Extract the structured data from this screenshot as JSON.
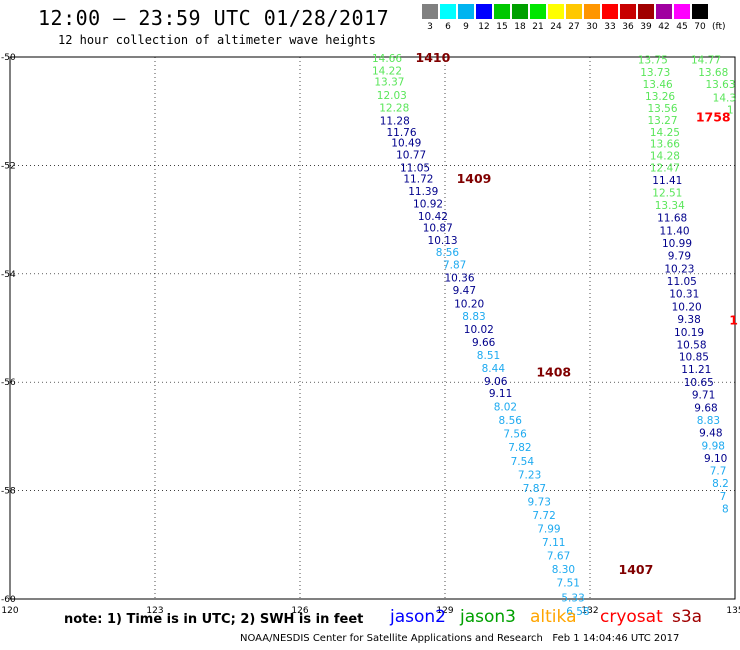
{
  "header": {
    "title": "12:00 — 23:59 UTC 01/28/2017",
    "subtitle": "12 hour collection of altimeter wave heights"
  },
  "scale": {
    "unit": "(ft)",
    "bins": [
      {
        "label": "3",
        "color": "#808080"
      },
      {
        "label": "6",
        "color": "#00ffff"
      },
      {
        "label": "9",
        "color": "#00b4f0"
      },
      {
        "label": "12",
        "color": "#0000ff"
      },
      {
        "label": "15",
        "color": "#00c800"
      },
      {
        "label": "18",
        "color": "#00a000"
      },
      {
        "label": "21",
        "color": "#00e600"
      },
      {
        "label": "24",
        "color": "#ffff00"
      },
      {
        "label": "27",
        "color": "#ffc800"
      },
      {
        "label": "30",
        "color": "#ff9600"
      },
      {
        "label": "33",
        "color": "#ff0000"
      },
      {
        "label": "36",
        "color": "#c80000"
      },
      {
        "label": "39",
        "color": "#a00000"
      },
      {
        "label": "42",
        "color": "#a000a0"
      },
      {
        "label": "45",
        "color": "#ff00ff"
      },
      {
        "label": "70",
        "color": "#000000"
      }
    ]
  },
  "axes": {
    "lon_ticks": [
      "120",
      "123",
      "126",
      "129",
      "132",
      "135"
    ],
    "lat_ticks": [
      "-50",
      "-52",
      "-54",
      "-56",
      "-58",
      "-60"
    ]
  },
  "colors": {
    "navy": "#00008b",
    "sky": "#1eaaf0",
    "lightgreen": "#5ae65a",
    "pass_label": "#800000",
    "pass_label_s3a": "#ff0000"
  },
  "tracks": [
    {
      "points": [
        {
          "lon": 127.8,
          "lat": -50.02,
          "v": "14.66",
          "c": "lightgreen"
        },
        {
          "lon": 127.8,
          "lat": -50.25,
          "v": "14.22",
          "c": "lightgreen"
        },
        {
          "lon": 127.85,
          "lat": -50.45,
          "v": "13.37",
          "c": "lightgreen"
        },
        {
          "lon": 127.9,
          "lat": -50.7,
          "v": "12.03",
          "c": "lightgreen"
        },
        {
          "lon": 127.95,
          "lat": -50.93,
          "v": "12.28",
          "c": "lightgreen"
        },
        {
          "lon": 127.96,
          "lat": -51.17,
          "v": "11.28",
          "c": "navy"
        },
        {
          "lon": 128.1,
          "lat": -51.38,
          "v": "11.76",
          "c": "navy"
        },
        {
          "lon": 128.2,
          "lat": -51.58,
          "v": "10.49",
          "c": "navy"
        },
        {
          "lon": 128.3,
          "lat": -51.8,
          "v": "10.77",
          "c": "navy"
        },
        {
          "lon": 128.38,
          "lat": -52.04,
          "v": "11.05",
          "c": "navy"
        },
        {
          "lon": 128.45,
          "lat": -52.24,
          "v": "11.72",
          "c": "navy"
        },
        {
          "lon": 128.55,
          "lat": -52.47,
          "v": "11.39",
          "c": "navy"
        },
        {
          "lon": 128.65,
          "lat": -52.7,
          "v": "10.92",
          "c": "navy"
        },
        {
          "lon": 128.75,
          "lat": -52.93,
          "v": "10.42",
          "c": "navy"
        },
        {
          "lon": 128.85,
          "lat": -53.15,
          "v": "10.87",
          "c": "navy"
        },
        {
          "lon": 128.95,
          "lat": -53.38,
          "v": "10.13",
          "c": "navy"
        },
        {
          "lon": 129.05,
          "lat": -53.6,
          "v": "8.56",
          "c": "sky"
        },
        {
          "lon": 129.2,
          "lat": -53.83,
          "v": "7.87",
          "c": "sky"
        },
        {
          "lon": 129.3,
          "lat": -54.07,
          "v": "10.36",
          "c": "navy"
        },
        {
          "lon": 129.4,
          "lat": -54.3,
          "v": "9.47",
          "c": "navy"
        },
        {
          "lon": 129.5,
          "lat": -54.55,
          "v": "10.20",
          "c": "navy"
        },
        {
          "lon": 129.6,
          "lat": -54.78,
          "v": "8.83",
          "c": "sky"
        },
        {
          "lon": 129.7,
          "lat": -55.02,
          "v": "10.02",
          "c": "navy"
        },
        {
          "lon": 129.8,
          "lat": -55.26,
          "v": "9.66",
          "c": "navy"
        },
        {
          "lon": 129.9,
          "lat": -55.5,
          "v": "8.51",
          "c": "sky"
        },
        {
          "lon": 130.0,
          "lat": -55.74,
          "v": "8.44",
          "c": "sky"
        },
        {
          "lon": 130.05,
          "lat": -55.98,
          "v": "9.06",
          "c": "navy"
        },
        {
          "lon": 130.15,
          "lat": -56.2,
          "v": "9.11",
          "c": "navy"
        },
        {
          "lon": 130.25,
          "lat": -56.45,
          "v": "8.02",
          "c": "sky"
        },
        {
          "lon": 130.35,
          "lat": -56.7,
          "v": "8.56",
          "c": "sky"
        },
        {
          "lon": 130.45,
          "lat": -56.95,
          "v": "7.56",
          "c": "sky"
        },
        {
          "lon": 130.55,
          "lat": -57.2,
          "v": "7.82",
          "c": "sky"
        },
        {
          "lon": 130.6,
          "lat": -57.45,
          "v": "7.54",
          "c": "sky"
        },
        {
          "lon": 130.75,
          "lat": -57.7,
          "v": "7.23",
          "c": "sky"
        },
        {
          "lon": 130.85,
          "lat": -57.95,
          "v": "7.87",
          "c": "sky"
        },
        {
          "lon": 130.95,
          "lat": -58.2,
          "v": "9.73",
          "c": "sky"
        },
        {
          "lon": 131.05,
          "lat": -58.45,
          "v": "7.72",
          "c": "sky"
        },
        {
          "lon": 131.15,
          "lat": -58.7,
          "v": "7.99",
          "c": "sky"
        },
        {
          "lon": 131.25,
          "lat": -58.95,
          "v": "7.11",
          "c": "sky"
        },
        {
          "lon": 131.35,
          "lat": -59.2,
          "v": "7.67",
          "c": "sky"
        },
        {
          "lon": 131.45,
          "lat": -59.45,
          "v": "8.30",
          "c": "sky"
        },
        {
          "lon": 131.55,
          "lat": -59.7,
          "v": "7.51",
          "c": "sky"
        },
        {
          "lon": 131.65,
          "lat": -59.97,
          "v": "5.33",
          "c": "sky"
        },
        {
          "lon": 131.75,
          "lat": -60.22,
          "v": "6.58",
          "c": "sky"
        }
      ]
    },
    {
      "points": [
        {
          "lon": 133.3,
          "lat": -50.05,
          "v": "13.75",
          "c": "lightgreen"
        },
        {
          "lon": 133.35,
          "lat": -50.28,
          "v": "13.73",
          "c": "lightgreen"
        },
        {
          "lon": 133.4,
          "lat": -50.5,
          "v": "13.46",
          "c": "lightgreen"
        },
        {
          "lon": 133.45,
          "lat": -50.72,
          "v": "13.26",
          "c": "lightgreen"
        },
        {
          "lon": 133.5,
          "lat": -50.94,
          "v": "13.56",
          "c": "lightgreen"
        },
        {
          "lon": 133.5,
          "lat": -51.16,
          "v": "13.27",
          "c": "lightgreen"
        },
        {
          "lon": 133.55,
          "lat": -51.38,
          "v": "14.25",
          "c": "lightgreen"
        },
        {
          "lon": 133.55,
          "lat": -51.6,
          "v": "13.66",
          "c": "lightgreen"
        },
        {
          "lon": 133.55,
          "lat": -51.82,
          "v": "14.28",
          "c": "lightgreen"
        },
        {
          "lon": 133.55,
          "lat": -52.04,
          "v": "12.47",
          "c": "lightgreen"
        },
        {
          "lon": 133.6,
          "lat": -52.27,
          "v": "11.41",
          "c": "navy"
        },
        {
          "lon": 133.6,
          "lat": -52.5,
          "v": "12.51",
          "c": "lightgreen"
        },
        {
          "lon": 133.65,
          "lat": -52.73,
          "v": "13.34",
          "c": "lightgreen"
        },
        {
          "lon": 133.7,
          "lat": -52.96,
          "v": "11.68",
          "c": "navy"
        },
        {
          "lon": 133.75,
          "lat": -53.2,
          "v": "11.40",
          "c": "navy"
        },
        {
          "lon": 133.8,
          "lat": -53.43,
          "v": "10.99",
          "c": "navy"
        },
        {
          "lon": 133.85,
          "lat": -53.66,
          "v": "9.79",
          "c": "navy"
        },
        {
          "lon": 133.85,
          "lat": -53.9,
          "v": "10.23",
          "c": "navy"
        },
        {
          "lon": 133.9,
          "lat": -54.13,
          "v": "11.05",
          "c": "navy"
        },
        {
          "lon": 133.95,
          "lat": -54.36,
          "v": "10.31",
          "c": "navy"
        },
        {
          "lon": 134.0,
          "lat": -54.6,
          "v": "10.20",
          "c": "navy"
        },
        {
          "lon": 134.05,
          "lat": -54.83,
          "v": "9.38",
          "c": "navy"
        },
        {
          "lon": 134.05,
          "lat": -55.07,
          "v": "10.19",
          "c": "navy"
        },
        {
          "lon": 134.1,
          "lat": -55.3,
          "v": "10.58",
          "c": "navy"
        },
        {
          "lon": 134.15,
          "lat": -55.53,
          "v": "10.85",
          "c": "navy"
        },
        {
          "lon": 134.2,
          "lat": -55.76,
          "v": "11.21",
          "c": "navy"
        },
        {
          "lon": 134.25,
          "lat": -56.0,
          "v": "10.65",
          "c": "navy"
        },
        {
          "lon": 134.35,
          "lat": -56.23,
          "v": "9.71",
          "c": "navy"
        },
        {
          "lon": 134.4,
          "lat": -56.47,
          "v": "9.68",
          "c": "navy"
        },
        {
          "lon": 134.45,
          "lat": -56.7,
          "v": "8.83",
          "c": "sky"
        },
        {
          "lon": 134.5,
          "lat": -56.93,
          "v": "9.48",
          "c": "navy"
        },
        {
          "lon": 134.55,
          "lat": -57.17,
          "v": "9.98",
          "c": "sky"
        },
        {
          "lon": 134.6,
          "lat": -57.4,
          "v": "9.10",
          "c": "navy"
        },
        {
          "lon": 134.65,
          "lat": -57.63,
          "v": "7.7",
          "c": "sky"
        },
        {
          "lon": 134.7,
          "lat": -57.86,
          "v": "8.2",
          "c": "sky"
        },
        {
          "lon": 134.75,
          "lat": -58.1,
          "v": "7",
          "c": "sky"
        },
        {
          "lon": 134.8,
          "lat": -58.33,
          "v": "8",
          "c": "sky"
        }
      ]
    },
    {
      "points": [
        {
          "lon": 134.4,
          "lat": -50.05,
          "v": "14.77",
          "c": "lightgreen"
        },
        {
          "lon": 134.55,
          "lat": -50.28,
          "v": "13.68",
          "c": "lightgreen"
        },
        {
          "lon": 134.7,
          "lat": -50.5,
          "v": "13.63",
          "c": "lightgreen"
        },
        {
          "lon": 134.78,
          "lat": -50.75,
          "v": "14.3",
          "c": "lightgreen"
        },
        {
          "lon": 134.9,
          "lat": -50.97,
          "v": "1",
          "c": "lightgreen"
        }
      ]
    }
  ],
  "pass_labels": [
    {
      "text": "1410",
      "lon": 128.75,
      "lat": -50.0,
      "c": "pass_label"
    },
    {
      "text": "1409",
      "lon": 129.6,
      "lat": -52.23,
      "c": "pass_label"
    },
    {
      "text": "1408",
      "lon": 131.25,
      "lat": -55.8,
      "c": "pass_label"
    },
    {
      "text": "1407",
      "lon": 132.95,
      "lat": -59.45,
      "c": "pass_label"
    },
    {
      "text": "1758",
      "lon": 134.55,
      "lat": -51.1,
      "c": "pass_label_s3a"
    },
    {
      "text": "1",
      "lon": 134.97,
      "lat": -54.84,
      "c": "pass_label_s3a"
    }
  ],
  "note": "note: 1) Time is in UTC; 2) SWH is in feet",
  "satellites": [
    {
      "name": "jason2",
      "color": "#0000ff"
    },
    {
      "name": "jason3",
      "color": "#00a000"
    },
    {
      "name": "altika",
      "color": "#ffa500"
    },
    {
      "name": "cryosat",
      "color": "#ff0000"
    },
    {
      "name": "s3a",
      "color": "#a00000"
    }
  ],
  "footer": {
    "credit": "NOAA/NESDIS Center for Satellite Applications and Research",
    "timestamp": "Feb  1 14:04:46 UTC 2017"
  }
}
